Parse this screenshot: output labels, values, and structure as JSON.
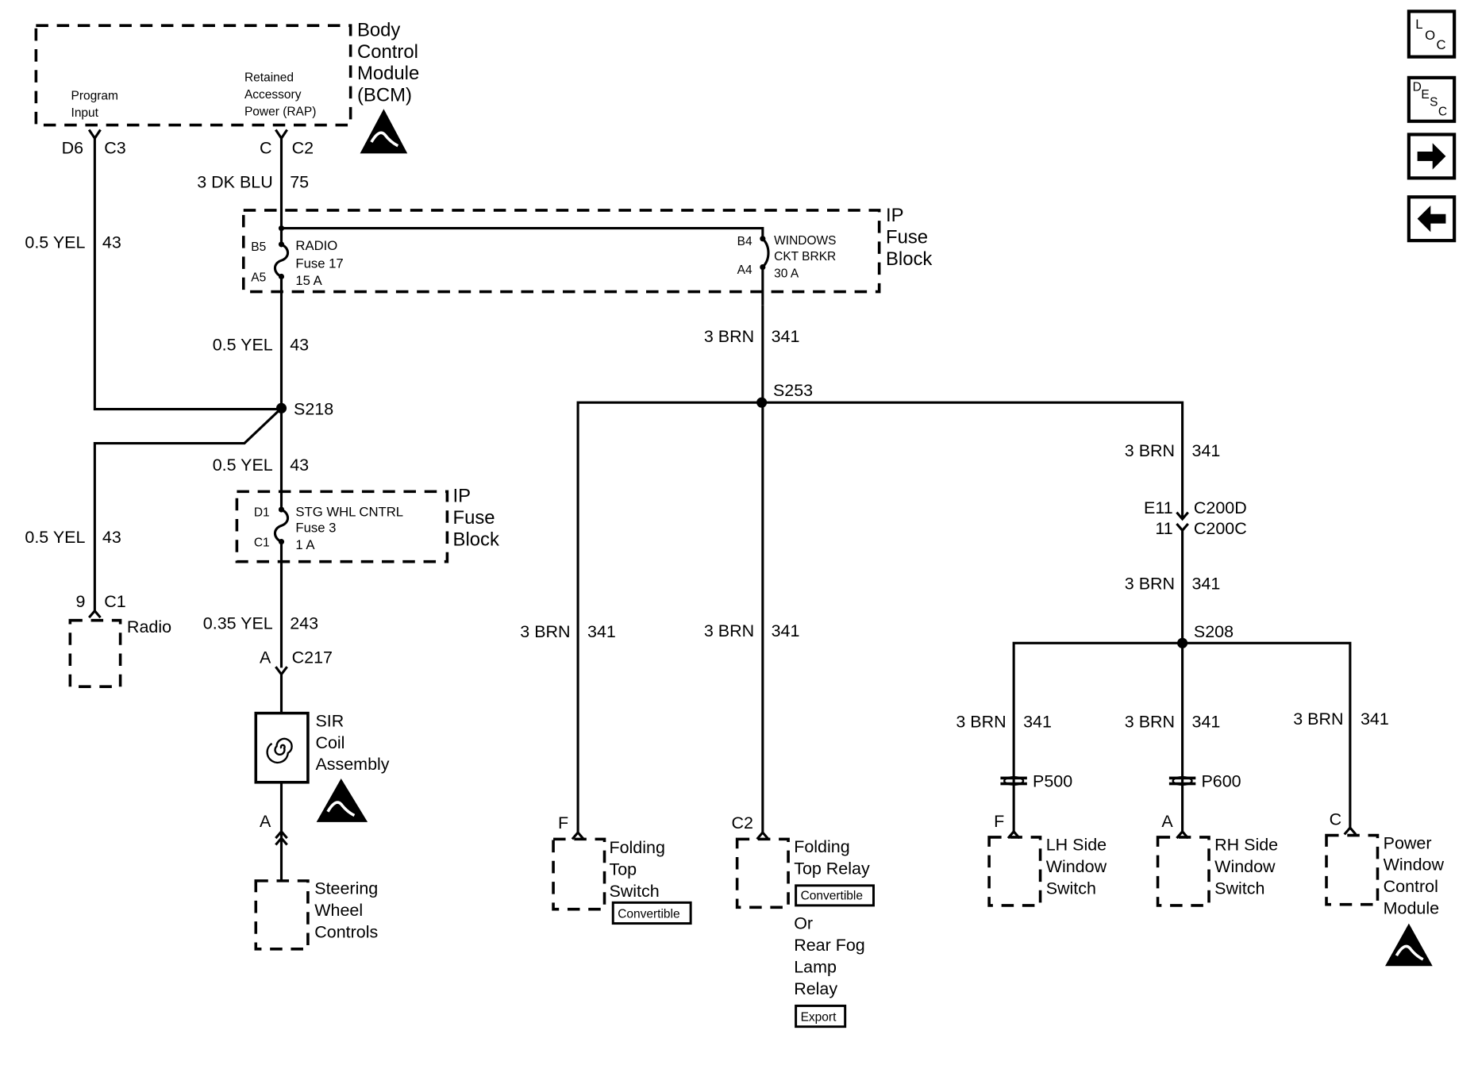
{
  "nav": {
    "loc": [
      "L",
      "O",
      "C"
    ],
    "desc": [
      "D",
      "E",
      "S",
      "C"
    ],
    "next_icon": "arrow-right-icon",
    "back_icon": "arrow-left-icon"
  },
  "bcm": {
    "title": [
      "Body",
      "Control",
      "Module",
      "(BCM)"
    ],
    "program_input": [
      "Program",
      "Input"
    ],
    "rap": [
      "Retained",
      "Accessory",
      "Power (RAP)"
    ],
    "pin_left": "D6",
    "conn_left": "C3",
    "pin_right": "C",
    "conn_right": "C2",
    "esd_icon": "esd-sensitive-icon"
  },
  "wires": {
    "dkblu": {
      "size": "3 DK BLU",
      "circuit": "75"
    },
    "yel_left_top": {
      "size": "0.5 YEL",
      "circuit": "43"
    },
    "yel_fuse_out": {
      "size": "0.5 YEL",
      "circuit": "43"
    },
    "yel_s218_down": {
      "size": "0.5 YEL",
      "circuit": "43"
    },
    "yel_radio": {
      "size": "0.5 YEL",
      "circuit": "43"
    },
    "yel_243": {
      "size": "0.35 YEL",
      "circuit": "243"
    },
    "brn_breaker": {
      "size": "3 BRN",
      "circuit": "341"
    },
    "brn_right_top": {
      "size": "3 BRN",
      "circuit": "341"
    },
    "brn_right_mid": {
      "size": "3 BRN",
      "circuit": "341"
    },
    "brn_fold_switch": {
      "size": "3 BRN",
      "circuit": "341"
    },
    "brn_fold_relay": {
      "size": "3 BRN",
      "circuit": "341"
    },
    "brn_lh": {
      "size": "3 BRN",
      "circuit": "341"
    },
    "brn_rh": {
      "size": "3 BRN",
      "circuit": "341"
    },
    "brn_pwm": {
      "size": "3 BRN",
      "circuit": "341"
    }
  },
  "ip_fuse_block_1": {
    "title": [
      "IP",
      "Fuse",
      "Block"
    ],
    "radio_fuse": {
      "pin_in": "B5",
      "pin_out": "A5",
      "lines": [
        "RADIO",
        "Fuse 17",
        "15 A"
      ]
    },
    "windows_breaker": {
      "pin_in": "B4",
      "pin_out": "A4",
      "lines": [
        "WINDOWS",
        "CKT BRKR",
        "30 A"
      ]
    }
  },
  "ip_fuse_block_2": {
    "title": [
      "IP",
      "Fuse",
      "Block"
    ],
    "stg_fuse": {
      "pin_in": "D1",
      "pin_out": "C1",
      "lines": [
        "STG WHL CNTRL",
        "Fuse 3",
        "1 A"
      ]
    }
  },
  "splices": {
    "s218": "S218",
    "s253": "S253",
    "s208": "S208"
  },
  "radio": {
    "pin": "9",
    "conn": "C1",
    "label": "Radio"
  },
  "c217": {
    "pin": "A",
    "conn": "C217"
  },
  "sir": {
    "lines": [
      "SIR",
      "Coil",
      "Assembly"
    ],
    "pin_out": "A"
  },
  "steering": {
    "lines": [
      "Steering",
      "Wheel",
      "Controls"
    ]
  },
  "c200": {
    "pin_d": "E11",
    "conn_d": "C200D",
    "pin_c": "11",
    "conn_c": "C200C"
  },
  "folding_switch": {
    "pin": "F",
    "lines": [
      "Folding",
      "Top",
      "Switch"
    ],
    "badge": "Convertible"
  },
  "folding_relay": {
    "pin": "C2",
    "lines": [
      "Folding",
      "Top Relay"
    ],
    "badge": "Convertible",
    "or_lines": [
      "Or",
      "Rear Fog",
      "Lamp",
      "Relay"
    ],
    "badge2": "Export"
  },
  "p500": "P500",
  "p600": "P600",
  "lh_switch": {
    "pin": "F",
    "lines": [
      "LH Side",
      "Window",
      "Switch"
    ]
  },
  "rh_switch": {
    "pin": "A",
    "lines": [
      "RH Side",
      "Window",
      "Switch"
    ]
  },
  "pwm": {
    "pin": "C",
    "lines": [
      "Power",
      "Window",
      "Control",
      "Module"
    ]
  }
}
